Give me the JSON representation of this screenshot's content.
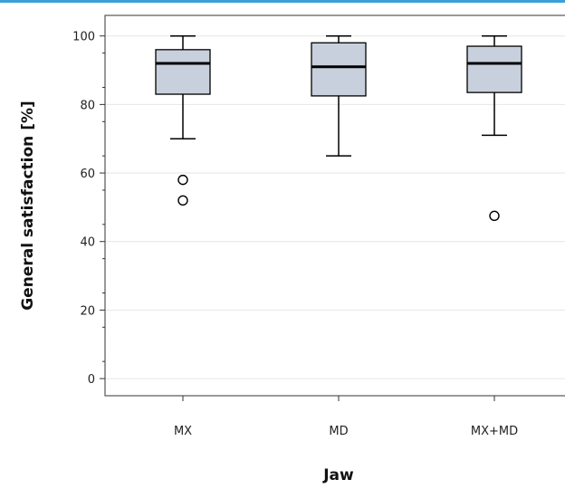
{
  "chart_data": {
    "type": "boxplot",
    "title": "",
    "xlabel": "Jaw",
    "ylabel": "General satisfaction [%]",
    "ylim": [
      -5,
      106
    ],
    "yticks": [
      0,
      20,
      40,
      60,
      80,
      100
    ],
    "grid": "horizontal",
    "categories": [
      "MX",
      "MD",
      "MX+MD"
    ],
    "boxes": [
      {
        "category": "MX",
        "whisker_low": 70,
        "q1": 83,
        "median": 92,
        "q3": 96,
        "whisker_high": 100,
        "outliers": [
          58,
          52
        ]
      },
      {
        "category": "MD",
        "whisker_low": 65,
        "q1": 82.5,
        "median": 91,
        "q3": 98,
        "whisker_high": 100,
        "outliers": []
      },
      {
        "category": "MX+MD",
        "whisker_low": 71,
        "q1": 83.5,
        "median": 92,
        "q3": 97,
        "whisker_high": 100,
        "outliers": [
          47.5
        ]
      }
    ],
    "colors": {
      "box_fill": "#c7d0dc",
      "line": "#000000",
      "grid": "#e6e6e6",
      "top_rule": "#3aa0d8"
    }
  }
}
